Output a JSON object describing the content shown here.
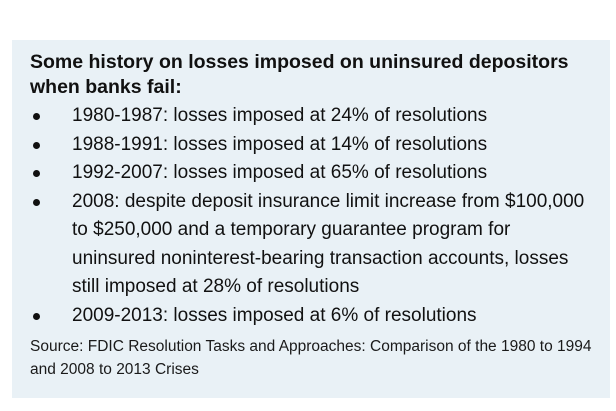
{
  "title": "Some history on losses imposed on uninsured depositors when banks fail:",
  "bullets": [
    "1980-1987: losses imposed at 24% of resolutions",
    "1988-1991: losses imposed at 14% of resolutions",
    "1992-2007: losses imposed at 65% of resolutions",
    "2008: despite deposit insurance limit increase from $100,000 to $250,000 and a temporary guarantee program for uninsured noninterest-bearing transaction accounts, losses still imposed at 28% of resolutions",
    "2009-2013: losses imposed at 6% of resolutions"
  ],
  "source": "Source: FDIC Resolution Tasks and Approaches: Comparison of the 1980 to 1994 and 2008 to 2013 Crises"
}
